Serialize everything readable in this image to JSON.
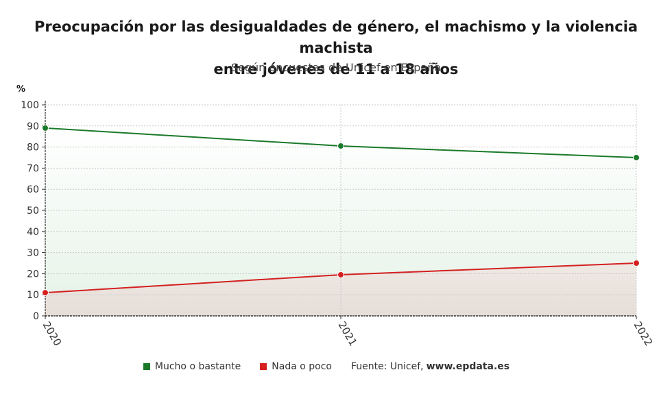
{
  "title_line1": "Preocupación por las desigualdades de género, el machismo y la violencia machista",
  "title_line2": "entre jóvenes de 11 a 18 años",
  "subtitle": "Según encuestas de Unicef en España",
  "source_label": "Fuente: Unicef,",
  "source_site": "www.epdata.es",
  "colors": {
    "mucho": "#1a7a2a",
    "nada": "#d42020"
  },
  "chart_data": {
    "type": "line",
    "title": "Preocupación por las desigualdades de género, el machismo y la violencia machista entre jóvenes de 11 a 18 años",
    "subtitle": "Según encuestas de Unicef en España",
    "ylabel": "%",
    "xlabel": "",
    "x": [
      "2020",
      "2021",
      "2022"
    ],
    "ylim": [
      0,
      100
    ],
    "yticks": [
      0,
      10,
      20,
      30,
      40,
      50,
      60,
      70,
      80,
      90,
      100
    ],
    "grid": true,
    "legend_position": "bottom",
    "series": [
      {
        "name": "Mucho o bastante",
        "color": "#1a7a2a",
        "values": [
          89,
          80.5,
          75
        ]
      },
      {
        "name": "Nada o poco",
        "color": "#d42020",
        "values": [
          11,
          19.5,
          25
        ]
      }
    ]
  }
}
